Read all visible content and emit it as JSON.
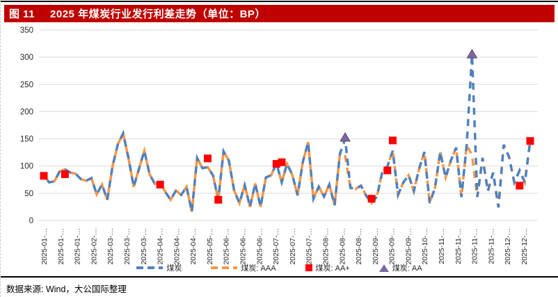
{
  "figure": {
    "label": "图 11",
    "title": "2025 年煤炭行业发行利差走势（单位：BP）"
  },
  "source": "数据来源: Wind，大公国际整理",
  "colors": {
    "title_bar": "#C00000",
    "coal_line": "#4F81BD",
    "aaa_line": "#F79646",
    "aa_plus_marker": "#FF0000",
    "aa_marker_fill": "#7A68A6",
    "aa_marker_stroke": "#55476F",
    "gridline": "#D9D9D9",
    "axis_text": "#262626"
  },
  "chart_data": {
    "type": "line",
    "title": "2025年煤炭行业发行利差走势（单位：BP）",
    "xlabel": "",
    "ylabel": "",
    "ylim": [
      0,
      350
    ],
    "yticks": [
      0,
      50,
      100,
      150,
      200,
      250,
      300,
      350
    ],
    "grid": "horizontal",
    "legend_position": "bottom",
    "x_tick_labels": [
      "2025-01-…",
      "2025-01-…",
      "2025-01-…",
      "2025-02-…",
      "2025-03-…",
      "2025-03-…",
      "2025-03-…",
      "2025-04-…",
      "2025-04-…",
      "2025-04-…",
      "2025-05-…",
      "2025-06-…",
      "2025-06-…",
      "2025-06-…",
      "2025-07-…",
      "2025-07-…",
      "2025-07-…",
      "2025-08-…",
      "2025-08-…",
      "2025-08-…",
      "2025-09-…",
      "2025-09-…",
      "2025-09-…",
      "2025-10-…",
      "2025-11-…",
      "2025-11-…",
      "2025-11-…",
      "2025-11-…",
      "2025-12-…",
      "2025-12-…"
    ],
    "series": [
      {
        "name": "煤炭",
        "kind": "line",
        "style": "dashed",
        "color": "#4F81BD",
        "values": [
          83,
          70,
          72,
          90,
          94,
          88,
          86,
          76,
          73,
          78,
          48,
          66,
          38,
          100,
          140,
          160,
          115,
          62,
          95,
          128,
          85,
          67,
          70,
          52,
          38,
          55,
          47,
          62,
          16,
          115,
          96,
          98,
          83,
          38,
          127,
          110,
          55,
          32,
          65,
          25,
          68,
          25,
          79,
          83,
          105,
          70,
          104,
          84,
          46,
          108,
          144,
          40,
          62,
          44,
          66,
          28,
          122,
          150,
          60,
          58,
          64,
          45,
          32,
          44,
          88,
          100,
          128,
          47,
          70,
          83,
          54,
          95,
          126,
          32,
          60,
          126,
          79,
          110,
          134,
          43,
          139,
          305,
          43,
          115,
          54,
          88,
          24,
          139,
          117,
          70,
          92,
          70,
          146
        ]
      },
      {
        "name": "煤炭: AAA",
        "kind": "line",
        "style": "dashed",
        "color": "#F79646",
        "values": [
          83,
          70,
          72,
          90,
          94,
          88,
          86,
          76,
          73,
          78,
          48,
          66,
          38,
          100,
          140,
          160,
          115,
          62,
          95,
          128,
          85,
          67,
          70,
          52,
          38,
          55,
          47,
          62,
          16,
          115,
          96,
          98,
          83,
          38,
          127,
          110,
          55,
          32,
          65,
          25,
          68,
          25,
          79,
          83,
          105,
          70,
          104,
          84,
          46,
          108,
          144,
          40,
          62,
          44,
          66,
          28,
          122,
          118,
          60,
          58,
          64,
          45,
          32,
          44,
          88,
          100,
          128,
          47,
          70,
          83,
          54,
          95,
          126,
          32,
          60,
          126,
          79,
          110,
          134,
          43,
          139,
          120,
          43,
          115,
          54,
          88,
          24,
          139,
          117,
          70,
          92,
          70,
          146
        ]
      },
      {
        "name": "煤炭: AA+",
        "kind": "scatter",
        "marker": "square",
        "color": "#FF0000",
        "points": [
          [
            0,
            82
          ],
          [
            4,
            85
          ],
          [
            22,
            66
          ],
          [
            31,
            114
          ],
          [
            33,
            38
          ],
          [
            44,
            104
          ],
          [
            45,
            107
          ],
          [
            62,
            40
          ],
          [
            65,
            92
          ],
          [
            66,
            147
          ],
          [
            90,
            64
          ],
          [
            92,
            146
          ]
        ]
      },
      {
        "name": "煤炭: AA",
        "kind": "scatter",
        "marker": "triangle",
        "color": "#7A68A6",
        "points": [
          [
            57,
            152
          ],
          [
            81,
            305
          ]
        ]
      }
    ]
  }
}
